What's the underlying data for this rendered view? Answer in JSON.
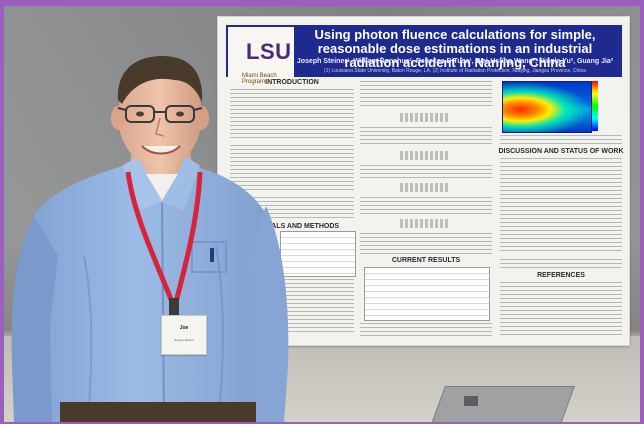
{
  "scene": {
    "subject": "man-standing-in-front-of-research-poster",
    "colors": {
      "frame": "#9b5fc0",
      "wall": "#8a8b8c",
      "poster_header": "#1f2a8f",
      "shirt": "#8fb0de",
      "lanyard": "#d8243a"
    }
  },
  "poster": {
    "logo": "LSU",
    "logo_sub": "Miami Beach Program",
    "title": "Using photon fluence calculations for simple, reasonable dose estimations in an industrial radiation accident in Nanjing, China",
    "authors": "Joseph Steiner¹, William Donahue¹, Rebecca DiTusa¹, Wei-Hsung Wang¹, Ningle Yu², Guang Jia²",
    "affiliation": "(1) Louisiana State University, Baton Rouge, LA; (2) Institute of Radiation Protection, Nanjing, Jiangsu Province, China",
    "sections": {
      "introduction": "INTRODUCTION",
      "materials": "MATERIALS AND METHODS",
      "current_results": "CURRENT RESULTS",
      "discussion": "DISCUSSION AND STATUS OF WORK",
      "references": "REFERENCES"
    }
  },
  "badge": {
    "name": "Joe",
    "subtitle": "Joseph Steiner"
  }
}
